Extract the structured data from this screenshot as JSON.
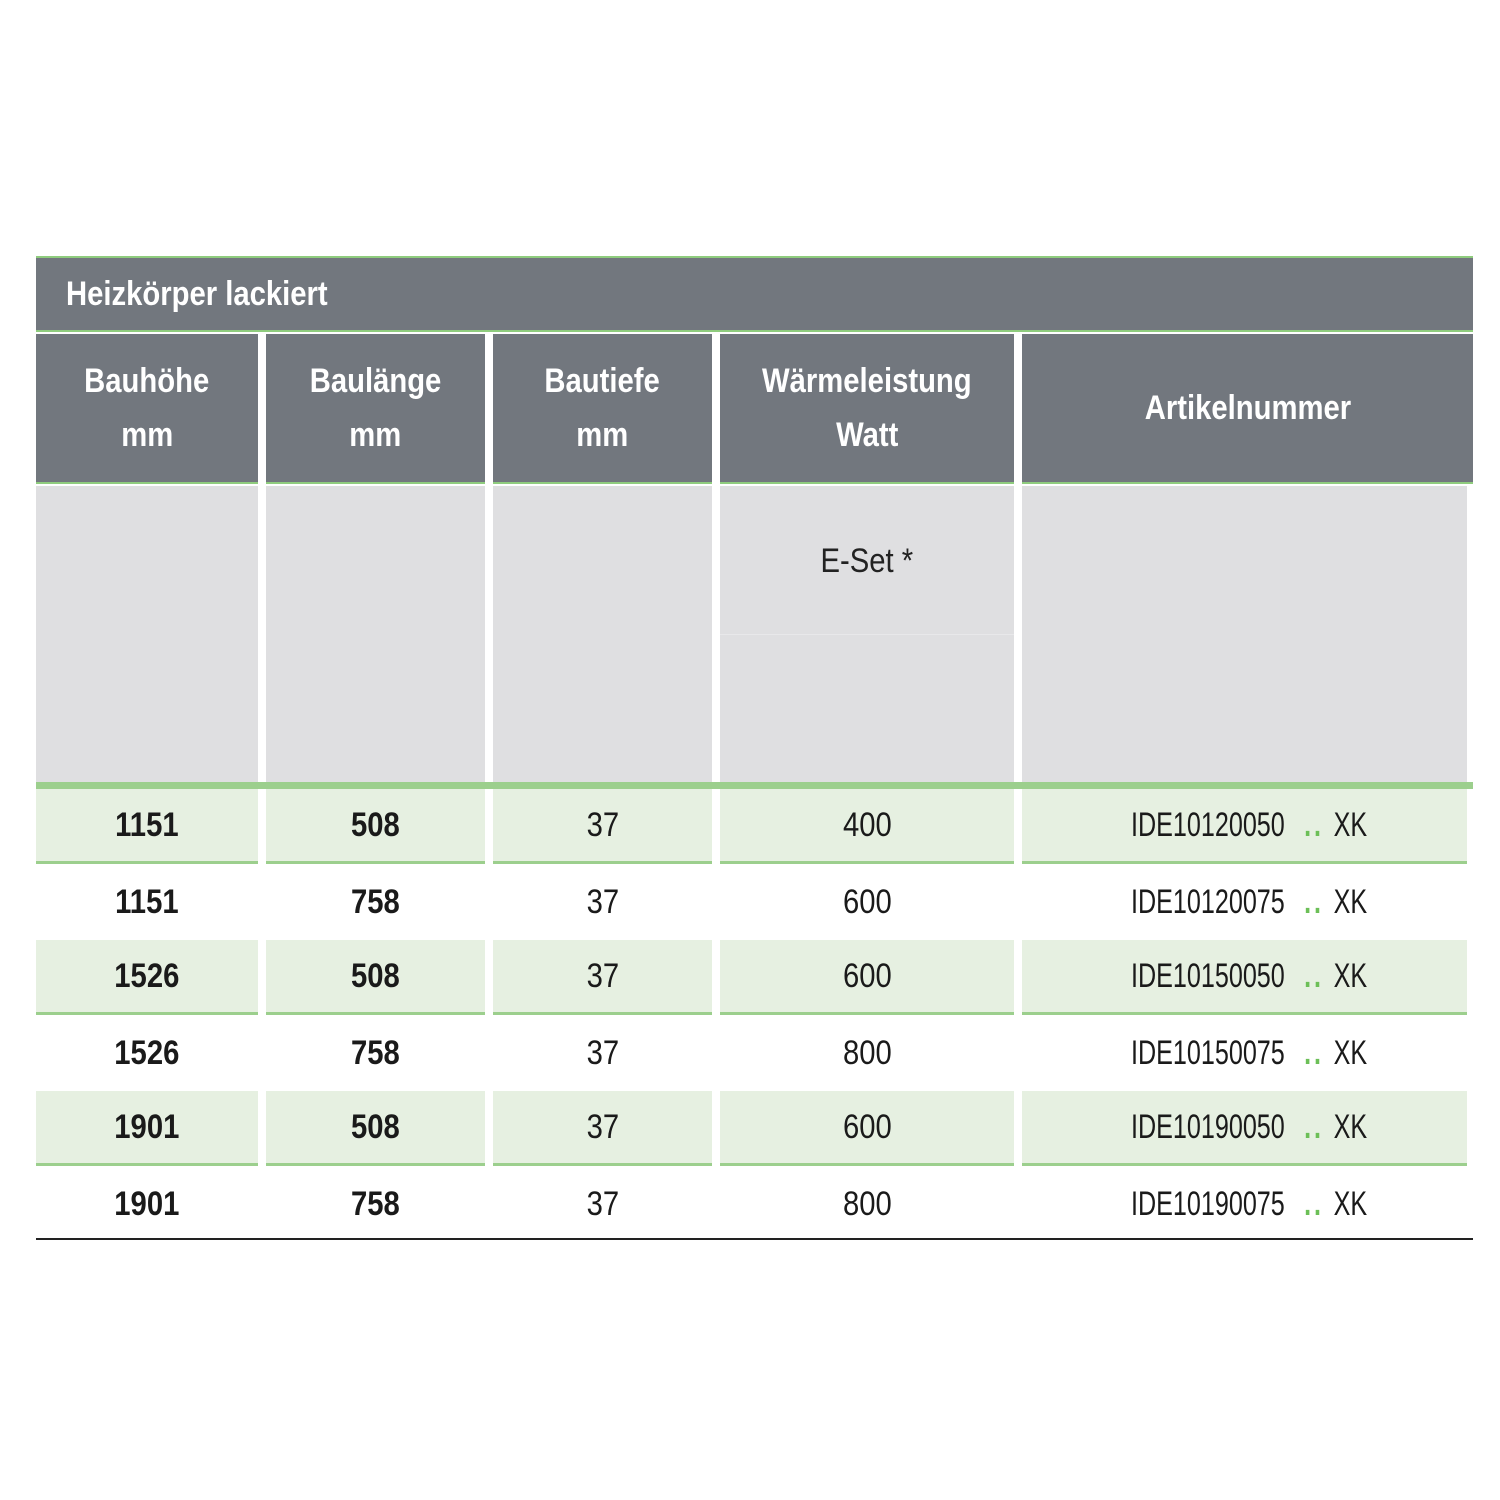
{
  "title": "Heizkörper lackiert",
  "columns": [
    {
      "line1": "Bauhöhe",
      "line2": "mm"
    },
    {
      "line1": "Baulänge",
      "line2": "mm"
    },
    {
      "line1": "Bautiefe",
      "line2": "mm"
    },
    {
      "line1": "Wärmeleistung",
      "line2": "Watt"
    },
    {
      "line1": "Artikelnummer",
      "line2": ""
    }
  ],
  "subheader": "E-Set *",
  "accent_color": "#9ccf8d",
  "rows": [
    {
      "hoehe": "1151",
      "laenge": "508",
      "tiefe": "37",
      "watt": "400",
      "artikel": "IDE10120050",
      "dots": "..",
      "suffix": "XK"
    },
    {
      "hoehe": "1151",
      "laenge": "758",
      "tiefe": "37",
      "watt": "600",
      "artikel": "IDE10120075",
      "dots": "..",
      "suffix": "XK"
    },
    {
      "hoehe": "1526",
      "laenge": "508",
      "tiefe": "37",
      "watt": "600",
      "artikel": "IDE10150050",
      "dots": "..",
      "suffix": "XK"
    },
    {
      "hoehe": "1526",
      "laenge": "758",
      "tiefe": "37",
      "watt": "800",
      "artikel": "IDE10150075",
      "dots": "..",
      "suffix": "XK"
    },
    {
      "hoehe": "1901",
      "laenge": "508",
      "tiefe": "37",
      "watt": "600",
      "artikel": "IDE10190050",
      "dots": "..",
      "suffix": "XK"
    },
    {
      "hoehe": "1901",
      "laenge": "758",
      "tiefe": "37",
      "watt": "800",
      "artikel": "IDE10190075",
      "dots": "..",
      "suffix": "XK"
    }
  ]
}
